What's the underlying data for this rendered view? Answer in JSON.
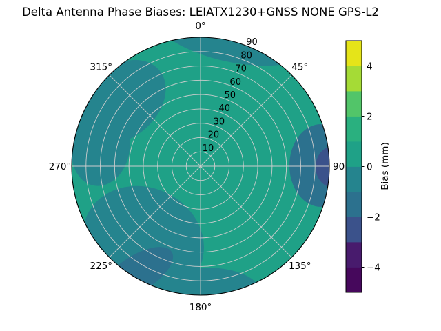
{
  "title": "Delta Antenna Phase Biases: LEIATX1230+GNSS NONE GPS-L2",
  "chart_data": {
    "type": "heatmap",
    "projection": "polar",
    "theta_zero_location": "top",
    "theta_direction": "clockwise",
    "theta_ticks": [
      "0°",
      "45°",
      "90°",
      "135°",
      "180°",
      "225°",
      "270°",
      "315°"
    ],
    "r_ticks": [
      "10",
      "20",
      "30",
      "40",
      "50",
      "60",
      "70",
      "80",
      "90"
    ],
    "r_max": 90,
    "r_label_angle": 22.5,
    "grid": true,
    "grid_color": "#cdcdcd",
    "base_color": "#1fa187",
    "base_value_band_mm": "0 to 1",
    "regions": [
      {
        "name": "north-edge",
        "band_mm": "-1 to 0",
        "color": "#25848e",
        "ellipse": [
          338,
          44,
          118,
          46,
          12
        ]
      },
      {
        "name": "northwest",
        "band_mm": "-1 to 0",
        "color": "#25848e",
        "ellipse": [
          176,
          148,
          72,
          52,
          -40
        ]
      },
      {
        "name": "west",
        "band_mm": "-1 to 0",
        "color": "#25848e",
        "ellipse": [
          146,
          215,
          42,
          55,
          10
        ]
      },
      {
        "name": "east-outer",
        "band_mm": "-2 to -1",
        "color": "#2c718e",
        "ellipse": [
          466,
          240,
          46,
          60,
          0
        ]
      },
      {
        "name": "east-core",
        "band_mm": "-3 to -2",
        "color": "#3b528b",
        "ellipse": [
          484,
          242,
          26,
          30,
          0
        ]
      },
      {
        "name": "southwest",
        "band_mm": "-1 to 0",
        "color": "#25848e",
        "ellipse": [
          208,
          350,
          90,
          78,
          25
        ]
      },
      {
        "name": "southwest-edge",
        "band_mm": "-2 to -1",
        "color": "#2c718e",
        "ellipse": [
          200,
          396,
          58,
          26,
          -32
        ]
      },
      {
        "name": "south",
        "band_mm": "-1 to 0",
        "color": "#25848e",
        "ellipse": [
          300,
          424,
          78,
          36,
          0
        ]
      }
    ],
    "colorbar": {
      "label": "Bias (mm)",
      "vmin": -5,
      "vmax": 5,
      "ticks": [
        -4,
        -2,
        0,
        2,
        4
      ],
      "tick_labels": [
        "−4",
        "−2",
        "0",
        "2",
        "4"
      ],
      "colors": [
        "#46085c",
        "#481b6d",
        "#3b528b",
        "#2c718e",
        "#25848e",
        "#1fa187",
        "#2ab07f",
        "#52c569",
        "#a5db36",
        "#e5e419"
      ]
    }
  }
}
